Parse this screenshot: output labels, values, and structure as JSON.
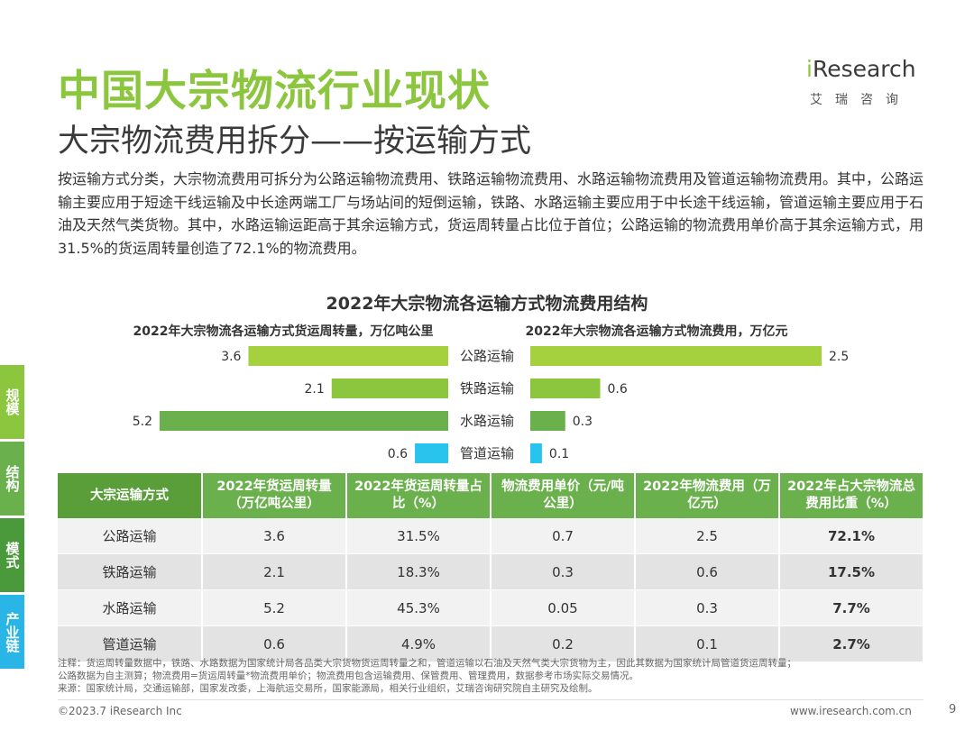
{
  "header": {
    "title": "中国大宗物流行业现状",
    "subtitle": "大宗物流费用拆分——按运输方式",
    "logo_main_i": "i",
    "logo_main_rest": "Research",
    "logo_sub": "艾瑞咨询"
  },
  "intro": "按运输方式分类，大宗物流费用可拆分为公路运输物流费用、铁路运输物流费用、水路运输物流费用及管道运输物流费用。其中，公路运输主要应用于短途干线运输及中长途两端工厂与场站间的短倒运输，铁路、水路运输主要应用于中长途干线运输，管道运输主要应用于石油及天然气类货物。其中，水路运输运距高于其余运输方式，货运周转量占比位于首位；公路运输的物流费用单价高于其余运输方式，用31.5%的货运周转量创造了72.1%的物流费用。",
  "side_tabs": [
    {
      "label": "规模",
      "color": "#8cc63f"
    },
    {
      "label": "结构",
      "color": "#6ab04c"
    },
    {
      "label": "模式",
      "color": "#4a9a3c"
    },
    {
      "label": "产业链",
      "color": "#29b6e6"
    }
  ],
  "chart_data": {
    "type": "bar",
    "title": "2022年大宗物流各运输方式物流费用结构",
    "categories": [
      "公路运输",
      "铁路运输",
      "水路运输",
      "管道运输"
    ],
    "series": [
      {
        "name": "2022年大宗物流各运输方式货运周转量，万亿吨公里",
        "values": [
          3.6,
          2.1,
          5.2,
          0.6
        ],
        "direction": "left"
      },
      {
        "name": "2022年大宗物流各运输方式物流费用，万亿元",
        "values": [
          2.5,
          0.6,
          0.3,
          0.1
        ],
        "direction": "right"
      }
    ],
    "bar_colors": [
      "#a5d13f",
      "#8cc63f",
      "#6ab04c",
      "#29c4ee"
    ],
    "label_color": "#333333"
  },
  "table": {
    "headers": [
      "大宗运输方式",
      "2022年货运周转量（万亿吨公里）",
      "2022年货运周转量占比（%）",
      "物流费用单价（元/吨公里）",
      "2022年物流费用（万亿元）",
      "2022年占大宗物流总费用比重（%）"
    ],
    "rows": [
      [
        "公路运输",
        "3.6",
        "31.5%",
        "0.7",
        "2.5",
        "72.1%"
      ],
      [
        "铁路运输",
        "2.1",
        "18.3%",
        "0.3",
        "0.6",
        "17.5%"
      ],
      [
        "水路运输",
        "5.2",
        "45.3%",
        "0.05",
        "0.3",
        "7.7%"
      ],
      [
        "管道运输",
        "0.6",
        "4.9%",
        "0.2",
        "0.1",
        "2.7%"
      ]
    ]
  },
  "notes": {
    "note1": "注释：货运周转量数据中，铁路、水路数据为国家统计局各品类大宗货物货运周转量之和，管道运输以石油及天然气类大宗货物为主，因此其数据为国家统计局管道货运周转量；",
    "note2": "公路数据为自主测算；物流费用=货运周转量*物流费用单价；物流费用包含运输费用、保管费用、管理费用，数据参考市场实际交易情况。",
    "source": "来源：国家统计局，交通运输部，国家发改委，上海航运交易所，国家能源局，相关行业组织，艾瑞咨询研究院自主研究及绘制。"
  },
  "footer": {
    "copyright": "©2023.7 iResearch Inc",
    "website": "www.iresearch.com.cn",
    "page": "9"
  }
}
